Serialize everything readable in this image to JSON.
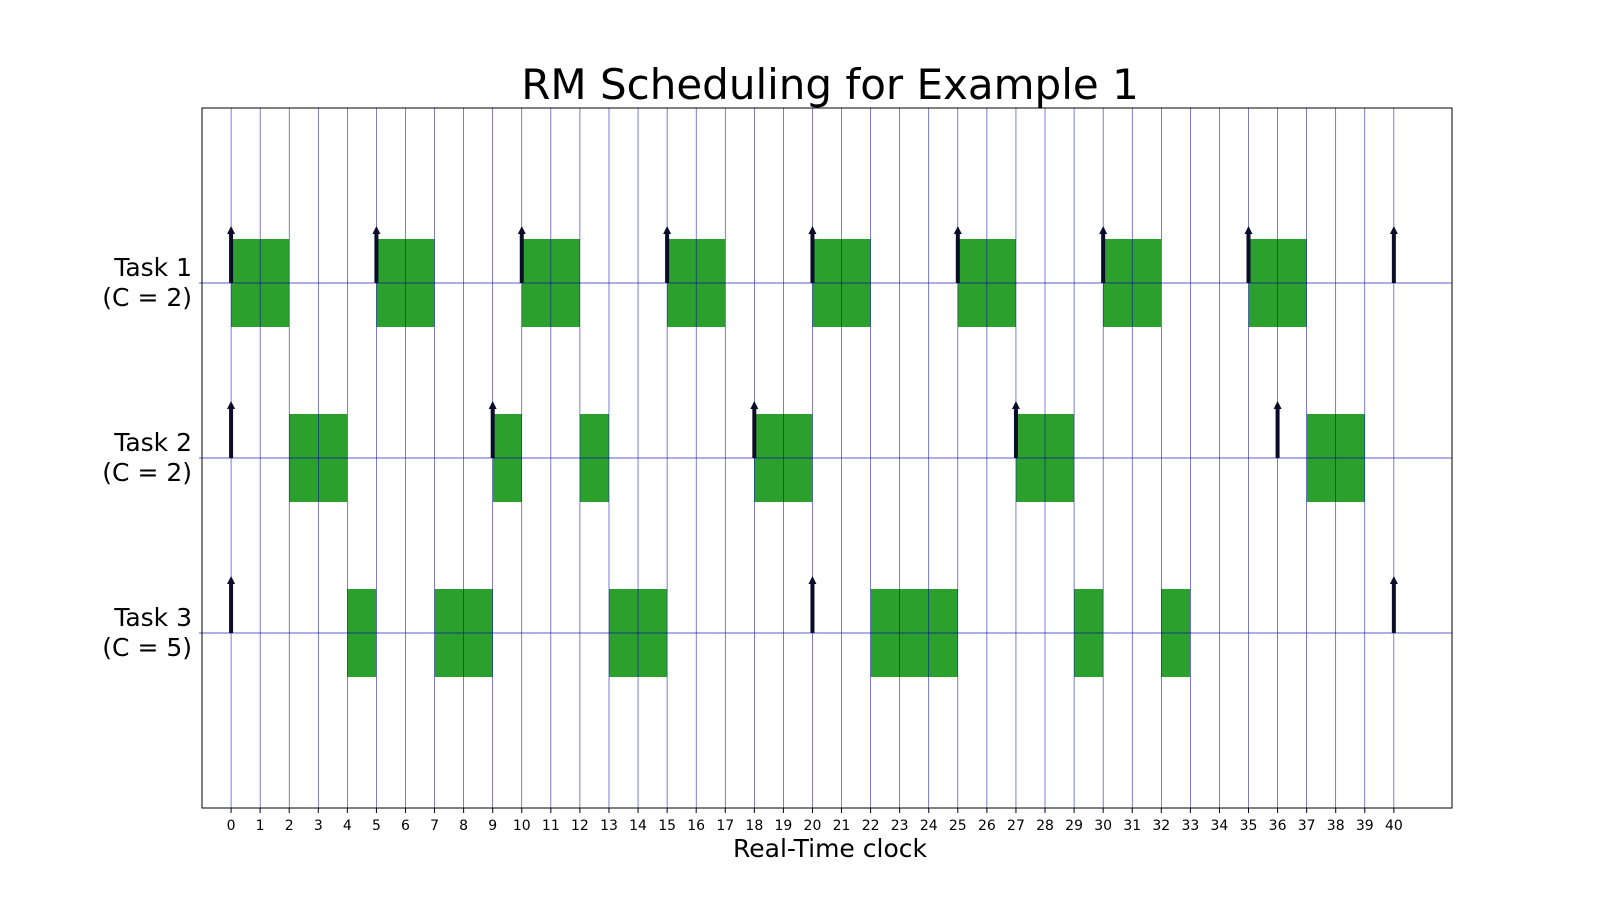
{
  "chart_data": {
    "type": "gantt",
    "title": "RM Scheduling for Example 1",
    "xlabel": "Real-Time clock",
    "xlim": [
      -1,
      42
    ],
    "xticks": [
      0,
      1,
      2,
      3,
      4,
      5,
      6,
      7,
      8,
      9,
      10,
      11,
      12,
      13,
      14,
      15,
      16,
      17,
      18,
      19,
      20,
      21,
      22,
      23,
      24,
      25,
      26,
      27,
      28,
      29,
      30,
      31,
      32,
      33,
      34,
      35,
      36,
      37,
      38,
      39,
      40
    ],
    "grid": true,
    "colors": {
      "execution": "#2ca02c",
      "grid": "#0000aa",
      "release_arrow": "#0b0b2a",
      "frame": "#000000"
    },
    "tasks": [
      {
        "name": "Task 1",
        "cost_label": "(C = 2)",
        "releases": [
          0,
          5,
          10,
          15,
          20,
          25,
          30,
          35,
          40
        ],
        "executions": [
          [
            0,
            2
          ],
          [
            5,
            7
          ],
          [
            10,
            12
          ],
          [
            15,
            17
          ],
          [
            20,
            22
          ],
          [
            25,
            27
          ],
          [
            30,
            32
          ],
          [
            35,
            37
          ]
        ]
      },
      {
        "name": "Task 2",
        "cost_label": "(C = 2)",
        "releases": [
          0,
          9,
          18,
          27,
          36
        ],
        "executions": [
          [
            2,
            4
          ],
          [
            9,
            10
          ],
          [
            12,
            13
          ],
          [
            18,
            20
          ],
          [
            27,
            29
          ],
          [
            37,
            39
          ]
        ]
      },
      {
        "name": "Task 3",
        "cost_label": "(C = 5)",
        "releases": [
          0,
          20,
          40
        ],
        "executions": [
          [
            4,
            5
          ],
          [
            7,
            9
          ],
          [
            13,
            15
          ],
          [
            22,
            25
          ],
          [
            29,
            30
          ],
          [
            32,
            33
          ]
        ]
      }
    ]
  }
}
